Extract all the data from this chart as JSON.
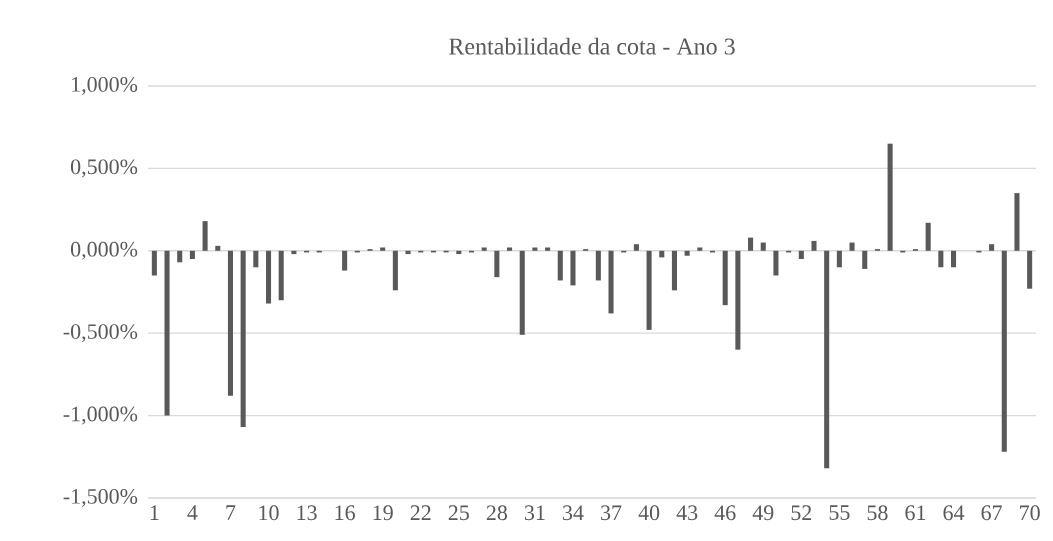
{
  "chart_data": {
    "type": "bar",
    "title": "Rentabilidade da cota - Ano 3",
    "categories": [
      "1",
      null,
      null,
      "4",
      null,
      null,
      "7",
      null,
      null,
      "10",
      null,
      null,
      "13",
      null,
      null,
      "16",
      null,
      null,
      "19",
      null,
      null,
      "22",
      null,
      null,
      "25",
      null,
      null,
      "28",
      null,
      null,
      "31",
      null,
      null,
      "34",
      null,
      null,
      "37",
      null,
      null,
      "40",
      null,
      null,
      "43",
      null,
      null,
      "46",
      null,
      null,
      "49",
      null,
      null,
      "52",
      null,
      null,
      "55",
      null,
      null,
      "58",
      null,
      null,
      "61",
      null,
      null,
      "64",
      null,
      null,
      "67",
      null,
      null,
      "70"
    ],
    "values": [
      -0.15,
      -1.0,
      -0.07,
      -0.05,
      0.18,
      0.03,
      -0.88,
      -1.07,
      -0.1,
      -0.32,
      -0.3,
      -0.02,
      -0.01,
      -0.01,
      0.0,
      -0.12,
      -0.01,
      0.01,
      0.02,
      -0.24,
      -0.02,
      -0.01,
      -0.01,
      -0.01,
      -0.02,
      -0.01,
      0.02,
      -0.16,
      0.02,
      -0.51,
      0.02,
      0.02,
      -0.18,
      -0.21,
      0.01,
      -0.18,
      -0.38,
      -0.01,
      0.04,
      -0.48,
      -0.04,
      -0.24,
      -0.03,
      0.02,
      -0.01,
      -0.33,
      -0.6,
      0.08,
      0.05,
      -0.15,
      -0.01,
      -0.05,
      0.06,
      -1.32,
      -0.1,
      0.05,
      -0.11,
      0.01,
      0.65,
      -0.01,
      0.01,
      0.17,
      -0.1,
      -0.1,
      0.0,
      -0.01,
      0.04,
      -1.22,
      0.35,
      -0.23
    ],
    "color": "#595959",
    "ylim": [
      -1.5,
      1.0
    ],
    "yticks": [
      {
        "value": -1.5,
        "label": "-1,500%"
      },
      {
        "value": -1.0,
        "label": "-1,000%"
      },
      {
        "value": -0.5,
        "label": "-0,500%"
      },
      {
        "value": 0.0,
        "label": "0,000%"
      },
      {
        "value": 0.5,
        "label": "0,500%"
      },
      {
        "value": 1.0,
        "label": "1,000%"
      }
    ],
    "grid": "y"
  }
}
